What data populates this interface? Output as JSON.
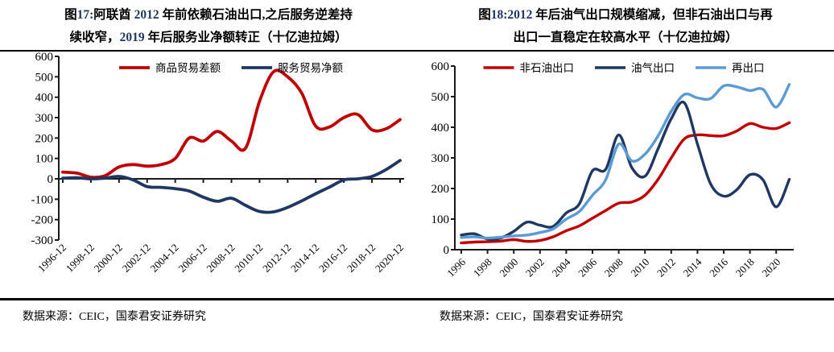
{
  "page": {
    "background": "#ffffff",
    "colors": {
      "title_number": "#1f3863",
      "text": "#000000",
      "series_red": "#c00000",
      "series_navy": "#1f3863",
      "series_lightblue": "#5b9bd5"
    }
  },
  "figures": [
    {
      "title_segments_line1": [
        {
          "t": "图",
          "c": "b"
        },
        {
          "t": "17:",
          "c": "n"
        },
        {
          "t": "阿联酋 ",
          "c": "b"
        },
        {
          "t": "2012",
          "c": "n"
        },
        {
          "t": " 年前依赖石油出口,之后服务逆差持",
          "c": "b"
        }
      ],
      "title_segments_line2": [
        {
          "t": "续收窄，",
          "c": "b"
        },
        {
          "t": "2019",
          "c": "n"
        },
        {
          "t": " 年后服务业净额转正（十亿迪拉姆）",
          "c": "b"
        }
      ],
      "source": "数据来源：CEIC，国泰君安证券研究"
    },
    {
      "title_segments_line1": [
        {
          "t": "图",
          "c": "b"
        },
        {
          "t": "18:2012",
          "c": "n"
        },
        {
          "t": " 年后油气出口规模缩减，但非石油出口与再",
          "c": "b"
        }
      ],
      "title_segments_line2": [
        {
          "t": "出口一直稳定在较高水平（十亿迪拉姆）",
          "c": "b"
        }
      ],
      "source": "数据来源：CEIC，国泰君安证券研究"
    }
  ],
  "chart_data": [
    {
      "type": "line",
      "title": "图17:阿联酋 2012 年前依赖石油出口,之后服务逆差持续收窄，2019 年后服务业净额转正（十亿迪拉姆）",
      "unit": "十亿迪拉姆",
      "xlabel": "",
      "ylabel": "",
      "ylim": [
        -300,
        600
      ],
      "ytick_step": 100,
      "grid": false,
      "legend_position": "top",
      "x_axis_at_zero": true,
      "x": [
        1996,
        1997,
        1998,
        1999,
        2000,
        2001,
        2002,
        2003,
        2004,
        2005,
        2006,
        2007,
        2008,
        2009,
        2010,
        2011,
        2012,
        2013,
        2014,
        2015,
        2016,
        2017,
        2018,
        2019,
        2020
      ],
      "x_tick_labels": [
        "1996-12",
        "1998-12",
        "2000-12",
        "2002-12",
        "2004-12",
        "2006-12",
        "2008-12",
        "2010-12",
        "2012-12",
        "2014-12",
        "2016-12",
        "2018-12",
        "2020-12"
      ],
      "series": [
        {
          "name": "商品贸易差额",
          "color": "#c00000",
          "values": [
            33,
            28,
            8,
            15,
            58,
            70,
            62,
            70,
            100,
            200,
            185,
            232,
            185,
            150,
            380,
            525,
            500,
            420,
            258,
            255,
            300,
            315,
            240,
            245,
            290
          ]
        },
        {
          "name": "服务贸易净额",
          "color": "#1f3863",
          "values": [
            3,
            5,
            0,
            3,
            12,
            -5,
            -38,
            -42,
            -48,
            -60,
            -90,
            -110,
            -95,
            -130,
            -160,
            -162,
            -140,
            -108,
            -73,
            -40,
            -5,
            0,
            12,
            45,
            90
          ]
        }
      ]
    },
    {
      "type": "line",
      "title": "图18:2012 年后油气出口规模缩减，但非石油出口与再出口一直稳定在较高水平（十亿迪拉姆）",
      "unit": "十亿迪拉姆",
      "xlabel": "",
      "ylabel": "",
      "ylim": [
        0,
        600
      ],
      "ytick_step": 100,
      "grid": false,
      "legend_position": "top",
      "x_axis_at_zero": true,
      "x": [
        1996,
        1997,
        1998,
        1999,
        2000,
        2001,
        2002,
        2003,
        2004,
        2005,
        2006,
        2007,
        2008,
        2009,
        2010,
        2011,
        2012,
        2013,
        2014,
        2015,
        2016,
        2017,
        2018,
        2019,
        2020,
        2021
      ],
      "x_tick_labels": [
        "1996",
        "1998",
        "2000",
        "2002",
        "2004",
        "2006",
        "2008",
        "2010",
        "2012",
        "2014",
        "2016",
        "2018",
        "2020"
      ],
      "series": [
        {
          "name": "非石油出口",
          "color": "#c00000",
          "values": [
            22,
            25,
            26,
            28,
            33,
            27,
            30,
            42,
            62,
            78,
            103,
            128,
            152,
            156,
            178,
            230,
            300,
            362,
            375,
            373,
            372,
            388,
            412,
            400,
            396,
            415
          ]
        },
        {
          "name": "油气出口",
          "color": "#1f3863",
          "values": [
            48,
            52,
            35,
            38,
            60,
            90,
            80,
            76,
            120,
            150,
            258,
            262,
            375,
            268,
            240,
            330,
            428,
            480,
            345,
            215,
            175,
            196,
            245,
            228,
            140,
            230
          ]
        },
        {
          "name": "再出口",
          "color": "#5b9bd5",
          "values": [
            40,
            42,
            38,
            41,
            45,
            48,
            56,
            68,
            100,
            125,
            178,
            228,
            345,
            290,
            312,
            372,
            452,
            507,
            496,
            494,
            535,
            532,
            520,
            524,
            466,
            540
          ]
        }
      ]
    }
  ]
}
